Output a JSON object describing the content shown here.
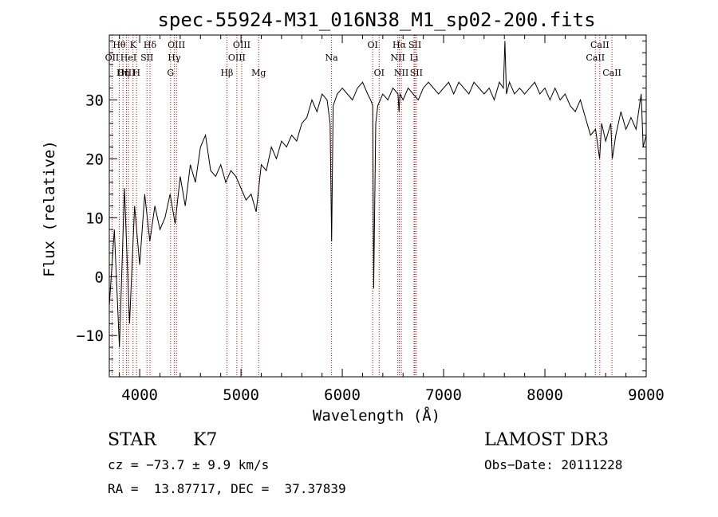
{
  "chart_data": {
    "type": "line",
    "title": "spec-55924-M31_016N38_M1_sp02-200.fits",
    "xlabel": "Wavelength (Å)",
    "ylabel": "Flux (relative)",
    "xlim": [
      3700,
      9000
    ],
    "ylim": [
      -17,
      41
    ],
    "x_ticks": [
      4000,
      5000,
      6000,
      7000,
      8000,
      9000
    ],
    "y_ticks": [
      -10,
      0,
      10,
      20,
      30
    ],
    "grid": false,
    "series": [
      {
        "name": "flux",
        "x": [
          3700,
          3750,
          3800,
          3850,
          3900,
          3950,
          4000,
          4050,
          4100,
          4150,
          4200,
          4250,
          4300,
          4350,
          4400,
          4450,
          4500,
          4550,
          4600,
          4650,
          4700,
          4750,
          4800,
          4850,
          4900,
          4950,
          5000,
          5050,
          5100,
          5150,
          5200,
          5250,
          5300,
          5350,
          5400,
          5450,
          5500,
          5550,
          5600,
          5650,
          5700,
          5750,
          5800,
          5850,
          5880,
          5895,
          5910,
          5930,
          5950,
          6000,
          6050,
          6100,
          6150,
          6200,
          6250,
          6280,
          6300,
          6310,
          6330,
          6350,
          6400,
          6450,
          6500,
          6550,
          6560,
          6570,
          6600,
          6650,
          6700,
          6750,
          6800,
          6850,
          6900,
          6950,
          7000,
          7050,
          7100,
          7150,
          7200,
          7250,
          7300,
          7350,
          7400,
          7450,
          7500,
          7550,
          7590,
          7605,
          7620,
          7650,
          7700,
          7750,
          7800,
          7850,
          7900,
          7950,
          8000,
          8050,
          8100,
          8150,
          8200,
          8250,
          8300,
          8350,
          8400,
          8450,
          8500,
          8540,
          8560,
          8600,
          8650,
          8665,
          8700,
          8750,
          8800,
          8850,
          8900,
          8950,
          8970,
          9000
        ],
        "y": [
          -5,
          8,
          -12,
          15,
          -8,
          12,
          2,
          14,
          6,
          12,
          8,
          10,
          14,
          9,
          17,
          12,
          19,
          16,
          22,
          24,
          18,
          17,
          19,
          16,
          18,
          17,
          15,
          13,
          14,
          11,
          19,
          18,
          22,
          20,
          23,
          22,
          24,
          23,
          26,
          27,
          30,
          28,
          31,
          30,
          26,
          6,
          29,
          30,
          31,
          32,
          31,
          30,
          32,
          33,
          31,
          30,
          29,
          -2,
          26,
          29,
          31,
          30,
          32,
          31,
          28,
          31,
          30,
          32,
          31,
          30,
          32,
          33,
          32,
          31,
          32,
          33,
          31,
          33,
          32,
          31,
          33,
          32,
          31,
          32,
          30,
          33,
          32,
          40,
          31,
          33,
          31,
          32,
          31,
          32,
          33,
          31,
          32,
          30,
          32,
          30,
          31,
          29,
          28,
          30,
          27,
          24,
          25,
          20,
          26,
          23,
          26,
          20,
          24,
          28,
          25,
          27,
          25,
          31,
          22,
          24
        ]
      }
    ],
    "lines": [
      {
        "name": "Hθ",
        "wl": 3798,
        "row": 0
      },
      {
        "name": "OII",
        "wl": 3727,
        "row": 1
      },
      {
        "name": "OIII",
        "wl": 3869,
        "row": 2
      },
      {
        "name": "Hη",
        "wl": 3835,
        "row": 2
      },
      {
        "name": "HeI",
        "wl": 3889,
        "row": 1
      },
      {
        "name": "K",
        "wl": 3934,
        "row": 0
      },
      {
        "name": "H",
        "wl": 3969,
        "row": 2
      },
      {
        "name": "SII",
        "wl": 4072,
        "row": 1
      },
      {
        "name": "Hδ",
        "wl": 4102,
        "row": 0
      },
      {
        "name": "OIII",
        "wl": 4363,
        "row": 0
      },
      {
        "name": "Hγ",
        "wl": 4341,
        "row": 1
      },
      {
        "name": "G",
        "wl": 4305,
        "row": 2
      },
      {
        "name": "Hβ",
        "wl": 4861,
        "row": 2
      },
      {
        "name": "OIII",
        "wl": 4959,
        "row": 1
      },
      {
        "name": "OIII",
        "wl": 5007,
        "row": 0
      },
      {
        "name": "Mg",
        "wl": 5175,
        "row": 2
      },
      {
        "name": "Na",
        "wl": 5894,
        "row": 1
      },
      {
        "name": "OI",
        "wl": 6300,
        "row": 0
      },
      {
        "name": "OI",
        "wl": 6364,
        "row": 2
      },
      {
        "name": "NII",
        "wl": 6548,
        "row": 1
      },
      {
        "name": "NII",
        "wl": 6583,
        "row": 2
      },
      {
        "name": "Hα",
        "wl": 6563,
        "row": 0
      },
      {
        "name": "SII",
        "wl": 6717,
        "row": 0
      },
      {
        "name": "Li",
        "wl": 6708,
        "row": 1
      },
      {
        "name": "SII",
        "wl": 6731,
        "row": 2
      },
      {
        "name": "CaII",
        "wl": 8498,
        "row": 1
      },
      {
        "name": "CaII",
        "wl": 8542,
        "row": 0
      },
      {
        "name": "CaII",
        "wl": 8662,
        "row": 2
      }
    ],
    "line_color": "#cc0000"
  },
  "info": {
    "class": "STAR",
    "subclass": "K7",
    "survey": "LAMOST DR3",
    "cz": "cz = −73.7 ± 9.9 km/s",
    "obs_date": "Obs−Date: 20111228",
    "radec": "RA =  13.87717, DEC =  37.37839"
  }
}
